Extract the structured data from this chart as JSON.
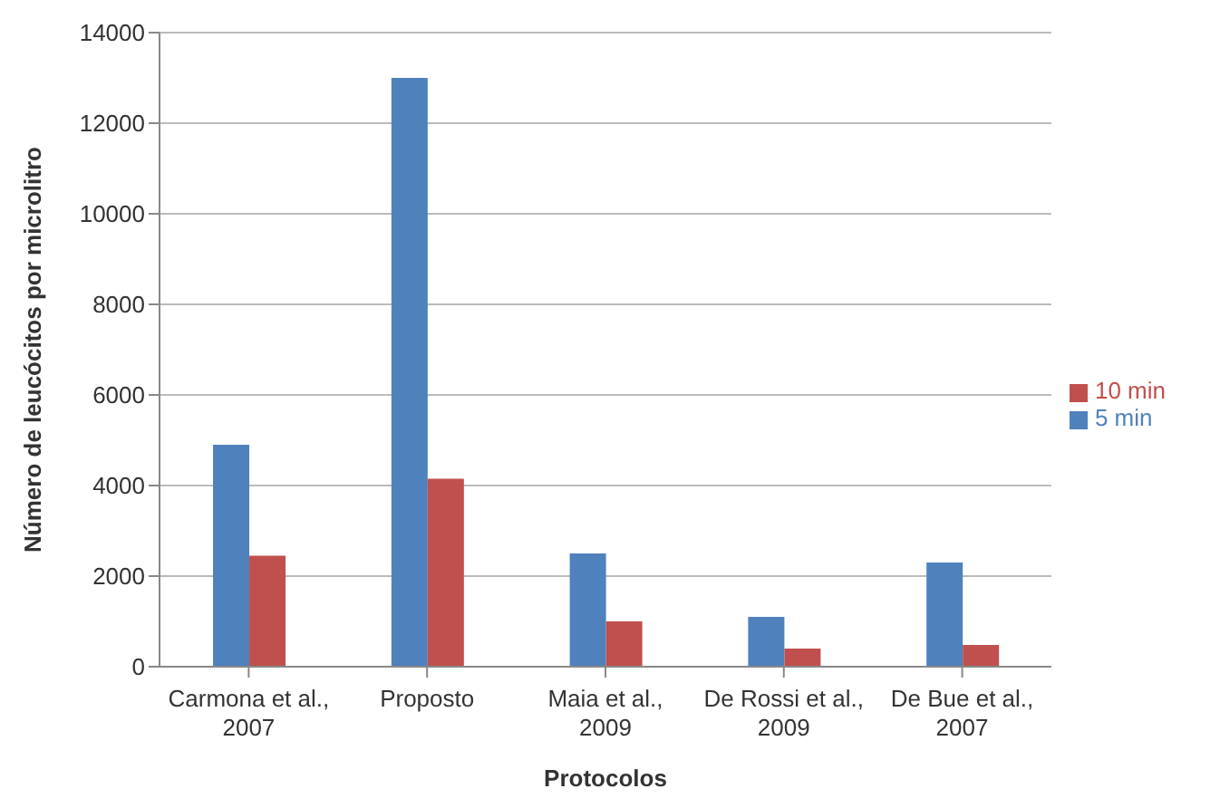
{
  "chart_data": {
    "type": "bar",
    "xlabel": "Protocolos",
    "ylabel": "Número de leucócitos por microlitro",
    "categories": [
      "Carmona et al., 2007",
      "Proposto",
      "Maia et al., 2009",
      "De Rossi et al., 2009",
      "De Bue et al., 2007"
    ],
    "series": [
      {
        "name": "5 min",
        "color": "#4f81bd",
        "values": [
          4900,
          13000,
          2500,
          1100,
          2300
        ]
      },
      {
        "name": "10 min",
        "color": "#c0504d",
        "values": [
          2450,
          4150,
          1000,
          400,
          480
        ]
      }
    ],
    "ylim": [
      0,
      14000
    ],
    "yticks": [
      0,
      2000,
      4000,
      6000,
      8000,
      10000,
      12000,
      14000
    ],
    "grid": "y",
    "legend": "right"
  }
}
